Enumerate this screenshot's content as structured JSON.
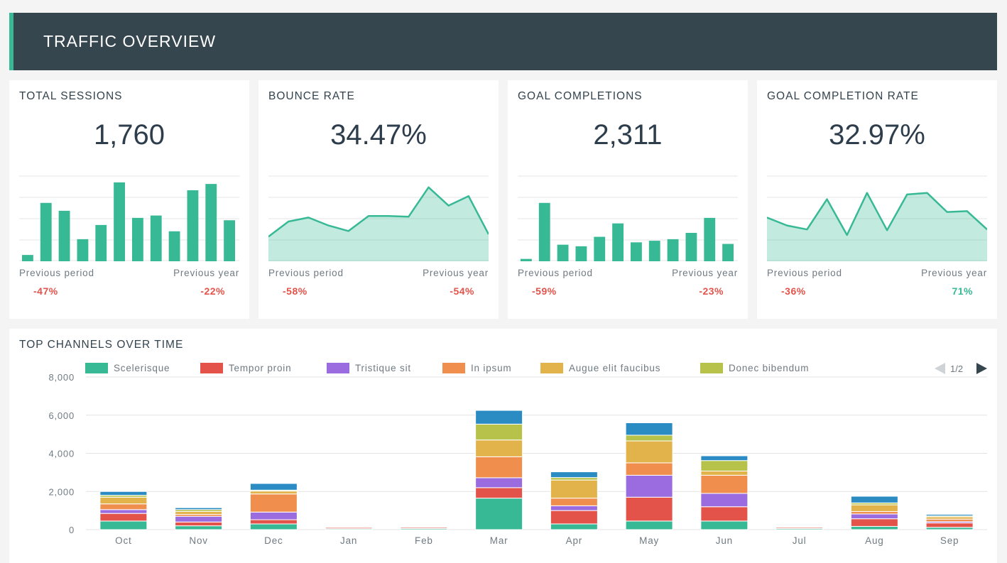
{
  "header": {
    "title": "TRAFFIC OVERVIEW"
  },
  "colors": {
    "accent": "#38b996",
    "header_bg": "#36464f",
    "negative": "#e3534a",
    "positive": "#38b996"
  },
  "kpis": [
    {
      "title": "TOTAL SESSIONS",
      "value": "1,760",
      "prev_period_label": "Previous period",
      "prev_year_label": "Previous year",
      "prev_period": "-47%",
      "prev_year": "-22%",
      "prev_period_sign": "neg",
      "prev_year_sign": "neg",
      "chart_type": "bar",
      "series": [
        8,
        74,
        64,
        28,
        46,
        100,
        55,
        58,
        38,
        90,
        98,
        52
      ]
    },
    {
      "title": "BOUNCE RATE",
      "value": "34.47%",
      "prev_period_label": "Previous period",
      "prev_year_label": "Previous year",
      "prev_period": "-58%",
      "prev_year": "-54%",
      "prev_period_sign": "neg",
      "prev_year_sign": "neg",
      "chart_type": "area",
      "series": [
        31,
        50,
        55,
        45,
        38,
        57,
        57,
        56,
        93,
        70,
        82,
        34
      ]
    },
    {
      "title": "GOAL COMPLETIONS",
      "value": "2,311",
      "prev_period_label": "Previous period",
      "prev_year_label": "Previous year",
      "prev_period": "-59%",
      "prev_year": "-23%",
      "prev_period_sign": "neg",
      "prev_year_sign": "neg",
      "chart_type": "bar",
      "series": [
        3,
        74,
        21,
        19,
        31,
        48,
        24,
        26,
        28,
        36,
        55,
        22
      ]
    },
    {
      "title": "GOAL COMPLETION RATE",
      "value": "32.97%",
      "prev_period_label": "Previous period",
      "prev_year_label": "Previous year",
      "prev_period": "-36%",
      "prev_year": "71%",
      "prev_period_sign": "neg",
      "prev_year_sign": "pos",
      "chart_type": "area",
      "series": [
        55,
        45,
        40,
        78,
        33,
        86,
        39,
        84,
        86,
        62,
        63,
        40
      ]
    }
  ],
  "channels": {
    "title": "TOP CHANNELS OVER TIME",
    "pager": "1/2",
    "legend": [
      {
        "name": "Scelerisque",
        "color": "#38b996"
      },
      {
        "name": "Tempor proin",
        "color": "#e3534a"
      },
      {
        "name": "Tristique sit",
        "color": "#9b6be0"
      },
      {
        "name": "In ipsum",
        "color": "#ef8e4d"
      },
      {
        "name": "Augue elit faucibus",
        "color": "#e3b34b"
      },
      {
        "name": "Donec bibendum",
        "color": "#b6c24a"
      }
    ]
  },
  "chart_data": {
    "type": "bar",
    "stacked": true,
    "title": "TOP CHANNELS OVER TIME",
    "categories": [
      "Oct",
      "Nov",
      "Dec",
      "Jan",
      "Feb",
      "Mar",
      "Apr",
      "May",
      "Jun",
      "Jul",
      "Aug",
      "Sep"
    ],
    "ylim": [
      0,
      8000
    ],
    "yticks": [
      "0",
      "2,000",
      "4,000",
      "6,000",
      "8,000"
    ],
    "ytick_values": [
      0,
      2000,
      4000,
      6000,
      8000
    ],
    "grid": true,
    "legend_position": "top",
    "series": [
      {
        "name": "Scelerisque",
        "color": "#38b996",
        "values": [
          450,
          200,
          300,
          50,
          60,
          1650,
          300,
          450,
          450,
          60,
          170,
          120
        ]
      },
      {
        "name": "Tempor proin",
        "color": "#e3534a",
        "values": [
          400,
          200,
          220,
          60,
          60,
          550,
          700,
          1250,
          750,
          60,
          400,
          230
        ]
      },
      {
        "name": "Tristique sit",
        "color": "#9b6be0",
        "values": [
          200,
          300,
          400,
          30,
          40,
          520,
          250,
          1150,
          700,
          30,
          250,
          70
        ]
      },
      {
        "name": "In ipsum",
        "color": "#ef8e4d",
        "values": [
          300,
          100,
          950,
          40,
          30,
          1100,
          400,
          650,
          950,
          40,
          130,
          130
        ]
      },
      {
        "name": "Augue elit faucibus",
        "color": "#e3b34b",
        "values": [
          350,
          150,
          150,
          30,
          30,
          880,
          950,
          1150,
          220,
          30,
          350,
          120
        ]
      },
      {
        "name": "Donec bibendum",
        "color": "#b6c24a",
        "values": [
          100,
          100,
          50,
          20,
          20,
          830,
          130,
          300,
          550,
          20,
          100,
          50
        ]
      },
      {
        "name": "",
        "color": "#2b8cc4",
        "values": [
          200,
          100,
          350,
          30,
          30,
          720,
          300,
          650,
          250,
          40,
          350,
          80
        ]
      }
    ]
  }
}
